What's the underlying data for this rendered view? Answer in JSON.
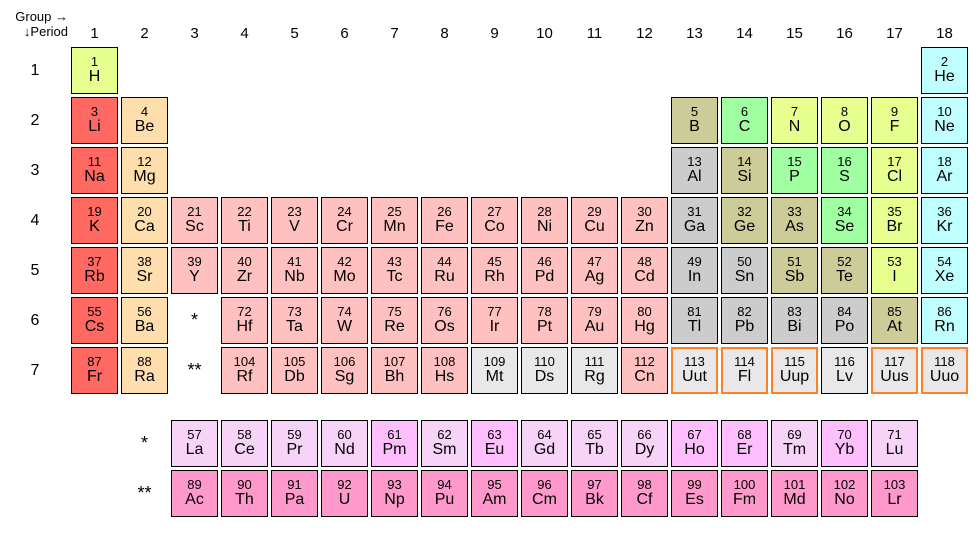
{
  "labels": {
    "group": "Group →",
    "period": "↓Period",
    "groups": [
      "1",
      "2",
      "3",
      "4",
      "5",
      "6",
      "7",
      "8",
      "9",
      "10",
      "11",
      "12",
      "13",
      "14",
      "15",
      "16",
      "17",
      "18"
    ],
    "periods": [
      "1",
      "2",
      "3",
      "4",
      "5",
      "6",
      "7"
    ],
    "star1": "*",
    "star2": "**"
  },
  "colors": {
    "alkali": "#ff6961",
    "alkaline": "#ffdead",
    "transition": "#ffc0c0",
    "posttrans": "#cccccc",
    "metalloid": "#cccc99",
    "nonmetal_green": "#a0ffa0",
    "nonmetal_yellow": "#e7ff8f",
    "halogen": "#e7ff8f",
    "noble": "#c0ffff",
    "lanth": "#ffbfff",
    "lanth_light": "#f7d4f7",
    "act": "#ff99cc",
    "unknown": "#e8e8e8",
    "border_orange": "#ff7f27"
  },
  "elements": [
    {
      "n": 1,
      "s": "H",
      "p": 1,
      "g": 1,
      "c": "nonmetal_yellow"
    },
    {
      "n": 2,
      "s": "He",
      "p": 1,
      "g": 18,
      "c": "noble"
    },
    {
      "n": 3,
      "s": "Li",
      "p": 2,
      "g": 1,
      "c": "alkali"
    },
    {
      "n": 4,
      "s": "Be",
      "p": 2,
      "g": 2,
      "c": "alkaline"
    },
    {
      "n": 5,
      "s": "B",
      "p": 2,
      "g": 13,
      "c": "metalloid"
    },
    {
      "n": 6,
      "s": "C",
      "p": 2,
      "g": 14,
      "c": "nonmetal_green"
    },
    {
      "n": 7,
      "s": "N",
      "p": 2,
      "g": 15,
      "c": "nonmetal_yellow"
    },
    {
      "n": 8,
      "s": "O",
      "p": 2,
      "g": 16,
      "c": "nonmetal_yellow"
    },
    {
      "n": 9,
      "s": "F",
      "p": 2,
      "g": 17,
      "c": "nonmetal_yellow"
    },
    {
      "n": 10,
      "s": "Ne",
      "p": 2,
      "g": 18,
      "c": "noble"
    },
    {
      "n": 11,
      "s": "Na",
      "p": 3,
      "g": 1,
      "c": "alkali"
    },
    {
      "n": 12,
      "s": "Mg",
      "p": 3,
      "g": 2,
      "c": "alkaline"
    },
    {
      "n": 13,
      "s": "Al",
      "p": 3,
      "g": 13,
      "c": "posttrans"
    },
    {
      "n": 14,
      "s": "Si",
      "p": 3,
      "g": 14,
      "c": "metalloid"
    },
    {
      "n": 15,
      "s": "P",
      "p": 3,
      "g": 15,
      "c": "nonmetal_green"
    },
    {
      "n": 16,
      "s": "S",
      "p": 3,
      "g": 16,
      "c": "nonmetal_green"
    },
    {
      "n": 17,
      "s": "Cl",
      "p": 3,
      "g": 17,
      "c": "nonmetal_yellow"
    },
    {
      "n": 18,
      "s": "Ar",
      "p": 3,
      "g": 18,
      "c": "noble"
    },
    {
      "n": 19,
      "s": "K",
      "p": 4,
      "g": 1,
      "c": "alkali"
    },
    {
      "n": 20,
      "s": "Ca",
      "p": 4,
      "g": 2,
      "c": "alkaline"
    },
    {
      "n": 21,
      "s": "Sc",
      "p": 4,
      "g": 3,
      "c": "transition"
    },
    {
      "n": 22,
      "s": "Ti",
      "p": 4,
      "g": 4,
      "c": "transition"
    },
    {
      "n": 23,
      "s": "V",
      "p": 4,
      "g": 5,
      "c": "transition"
    },
    {
      "n": 24,
      "s": "Cr",
      "p": 4,
      "g": 6,
      "c": "transition"
    },
    {
      "n": 25,
      "s": "Mn",
      "p": 4,
      "g": 7,
      "c": "transition"
    },
    {
      "n": 26,
      "s": "Fe",
      "p": 4,
      "g": 8,
      "c": "transition"
    },
    {
      "n": 27,
      "s": "Co",
      "p": 4,
      "g": 9,
      "c": "transition"
    },
    {
      "n": 28,
      "s": "Ni",
      "p": 4,
      "g": 10,
      "c": "transition"
    },
    {
      "n": 29,
      "s": "Cu",
      "p": 4,
      "g": 11,
      "c": "transition"
    },
    {
      "n": 30,
      "s": "Zn",
      "p": 4,
      "g": 12,
      "c": "transition"
    },
    {
      "n": 31,
      "s": "Ga",
      "p": 4,
      "g": 13,
      "c": "posttrans"
    },
    {
      "n": 32,
      "s": "Ge",
      "p": 4,
      "g": 14,
      "c": "metalloid"
    },
    {
      "n": 33,
      "s": "As",
      "p": 4,
      "g": 15,
      "c": "metalloid"
    },
    {
      "n": 34,
      "s": "Se",
      "p": 4,
      "g": 16,
      "c": "nonmetal_green"
    },
    {
      "n": 35,
      "s": "Br",
      "p": 4,
      "g": 17,
      "c": "nonmetal_yellow"
    },
    {
      "n": 36,
      "s": "Kr",
      "p": 4,
      "g": 18,
      "c": "noble"
    },
    {
      "n": 37,
      "s": "Rb",
      "p": 5,
      "g": 1,
      "c": "alkali"
    },
    {
      "n": 38,
      "s": "Sr",
      "p": 5,
      "g": 2,
      "c": "alkaline"
    },
    {
      "n": 39,
      "s": "Y",
      "p": 5,
      "g": 3,
      "c": "transition"
    },
    {
      "n": 40,
      "s": "Zr",
      "p": 5,
      "g": 4,
      "c": "transition"
    },
    {
      "n": 41,
      "s": "Nb",
      "p": 5,
      "g": 5,
      "c": "transition"
    },
    {
      "n": 42,
      "s": "Mo",
      "p": 5,
      "g": 6,
      "c": "transition"
    },
    {
      "n": 43,
      "s": "Tc",
      "p": 5,
      "g": 7,
      "c": "transition"
    },
    {
      "n": 44,
      "s": "Ru",
      "p": 5,
      "g": 8,
      "c": "transition"
    },
    {
      "n": 45,
      "s": "Rh",
      "p": 5,
      "g": 9,
      "c": "transition"
    },
    {
      "n": 46,
      "s": "Pd",
      "p": 5,
      "g": 10,
      "c": "transition"
    },
    {
      "n": 47,
      "s": "Ag",
      "p": 5,
      "g": 11,
      "c": "transition"
    },
    {
      "n": 48,
      "s": "Cd",
      "p": 5,
      "g": 12,
      "c": "transition"
    },
    {
      "n": 49,
      "s": "In",
      "p": 5,
      "g": 13,
      "c": "posttrans"
    },
    {
      "n": 50,
      "s": "Sn",
      "p": 5,
      "g": 14,
      "c": "posttrans"
    },
    {
      "n": 51,
      "s": "Sb",
      "p": 5,
      "g": 15,
      "c": "metalloid"
    },
    {
      "n": 52,
      "s": "Te",
      "p": 5,
      "g": 16,
      "c": "metalloid"
    },
    {
      "n": 53,
      "s": "I",
      "p": 5,
      "g": 17,
      "c": "nonmetal_yellow"
    },
    {
      "n": 54,
      "s": "Xe",
      "p": 5,
      "g": 18,
      "c": "noble"
    },
    {
      "n": 55,
      "s": "Cs",
      "p": 6,
      "g": 1,
      "c": "alkali"
    },
    {
      "n": 56,
      "s": "Ba",
      "p": 6,
      "g": 2,
      "c": "alkaline"
    },
    {
      "n": 72,
      "s": "Hf",
      "p": 6,
      "g": 4,
      "c": "transition"
    },
    {
      "n": 73,
      "s": "Ta",
      "p": 6,
      "g": 5,
      "c": "transition"
    },
    {
      "n": 74,
      "s": "W",
      "p": 6,
      "g": 6,
      "c": "transition"
    },
    {
      "n": 75,
      "s": "Re",
      "p": 6,
      "g": 7,
      "c": "transition"
    },
    {
      "n": 76,
      "s": "Os",
      "p": 6,
      "g": 8,
      "c": "transition"
    },
    {
      "n": 77,
      "s": "Ir",
      "p": 6,
      "g": 9,
      "c": "transition"
    },
    {
      "n": 78,
      "s": "Pt",
      "p": 6,
      "g": 10,
      "c": "transition"
    },
    {
      "n": 79,
      "s": "Au",
      "p": 6,
      "g": 11,
      "c": "transition"
    },
    {
      "n": 80,
      "s": "Hg",
      "p": 6,
      "g": 12,
      "c": "transition"
    },
    {
      "n": 81,
      "s": "Tl",
      "p": 6,
      "g": 13,
      "c": "posttrans"
    },
    {
      "n": 82,
      "s": "Pb",
      "p": 6,
      "g": 14,
      "c": "posttrans"
    },
    {
      "n": 83,
      "s": "Bi",
      "p": 6,
      "g": 15,
      "c": "posttrans"
    },
    {
      "n": 84,
      "s": "Po",
      "p": 6,
      "g": 16,
      "c": "posttrans"
    },
    {
      "n": 85,
      "s": "At",
      "p": 6,
      "g": 17,
      "c": "metalloid"
    },
    {
      "n": 86,
      "s": "Rn",
      "p": 6,
      "g": 18,
      "c": "noble"
    },
    {
      "n": 87,
      "s": "Fr",
      "p": 7,
      "g": 1,
      "c": "alkali"
    },
    {
      "n": 88,
      "s": "Ra",
      "p": 7,
      "g": 2,
      "c": "alkaline"
    },
    {
      "n": 104,
      "s": "Rf",
      "p": 7,
      "g": 4,
      "c": "transition"
    },
    {
      "n": 105,
      "s": "Db",
      "p": 7,
      "g": 5,
      "c": "transition"
    },
    {
      "n": 106,
      "s": "Sg",
      "p": 7,
      "g": 6,
      "c": "transition"
    },
    {
      "n": 107,
      "s": "Bh",
      "p": 7,
      "g": 7,
      "c": "transition"
    },
    {
      "n": 108,
      "s": "Hs",
      "p": 7,
      "g": 8,
      "c": "transition"
    },
    {
      "n": 109,
      "s": "Mt",
      "p": 7,
      "g": 9,
      "c": "unknown"
    },
    {
      "n": 110,
      "s": "Ds",
      "p": 7,
      "g": 10,
      "c": "unknown"
    },
    {
      "n": 111,
      "s": "Rg",
      "p": 7,
      "g": 11,
      "c": "unknown"
    },
    {
      "n": 112,
      "s": "Cn",
      "p": 7,
      "g": 12,
      "c": "transition"
    },
    {
      "n": 113,
      "s": "Uut",
      "p": 7,
      "g": 13,
      "c": "unknown",
      "ob": true
    },
    {
      "n": 114,
      "s": "Fl",
      "p": 7,
      "g": 14,
      "c": "unknown",
      "ob": true
    },
    {
      "n": 115,
      "s": "Uup",
      "p": 7,
      "g": 15,
      "c": "unknown",
      "ob": true
    },
    {
      "n": 116,
      "s": "Lv",
      "p": 7,
      "g": 16,
      "c": "unknown"
    },
    {
      "n": 117,
      "s": "Uus",
      "p": 7,
      "g": 17,
      "c": "unknown",
      "ob": true
    },
    {
      "n": 118,
      "s": "Uuo",
      "p": 7,
      "g": 18,
      "c": "unknown",
      "ob": true
    }
  ],
  "lanthanides": [
    {
      "n": 57,
      "s": "La",
      "c": "lanth_light"
    },
    {
      "n": 58,
      "s": "Ce",
      "c": "lanth_light"
    },
    {
      "n": 59,
      "s": "Pr",
      "c": "lanth_light"
    },
    {
      "n": 60,
      "s": "Nd",
      "c": "lanth_light"
    },
    {
      "n": 61,
      "s": "Pm",
      "c": "lanth"
    },
    {
      "n": 62,
      "s": "Sm",
      "c": "lanth_light"
    },
    {
      "n": 63,
      "s": "Eu",
      "c": "lanth"
    },
    {
      "n": 64,
      "s": "Gd",
      "c": "lanth_light"
    },
    {
      "n": 65,
      "s": "Tb",
      "c": "lanth_light"
    },
    {
      "n": 66,
      "s": "Dy",
      "c": "lanth_light"
    },
    {
      "n": 67,
      "s": "Ho",
      "c": "lanth"
    },
    {
      "n": 68,
      "s": "Er",
      "c": "lanth"
    },
    {
      "n": 69,
      "s": "Tm",
      "c": "lanth_light"
    },
    {
      "n": 70,
      "s": "Yb",
      "c": "lanth"
    },
    {
      "n": 71,
      "s": "Lu",
      "c": "lanth_light"
    }
  ],
  "actinides": [
    {
      "n": 89,
      "s": "Ac",
      "c": "act"
    },
    {
      "n": 90,
      "s": "Th",
      "c": "act"
    },
    {
      "n": 91,
      "s": "Pa",
      "c": "act"
    },
    {
      "n": 92,
      "s": "U",
      "c": "act"
    },
    {
      "n": 93,
      "s": "Np",
      "c": "act"
    },
    {
      "n": 94,
      "s": "Pu",
      "c": "act"
    },
    {
      "n": 95,
      "s": "Am",
      "c": "act"
    },
    {
      "n": 96,
      "s": "Cm",
      "c": "act"
    },
    {
      "n": 97,
      "s": "Bk",
      "c": "act"
    },
    {
      "n": 98,
      "s": "Cf",
      "c": "act"
    },
    {
      "n": 99,
      "s": "Es",
      "c": "act"
    },
    {
      "n": 100,
      "s": "Fm",
      "c": "act"
    },
    {
      "n": 101,
      "s": "Md",
      "c": "act"
    },
    {
      "n": 102,
      "s": "No",
      "c": "act"
    },
    {
      "n": 103,
      "s": "Lr",
      "c": "act"
    }
  ]
}
